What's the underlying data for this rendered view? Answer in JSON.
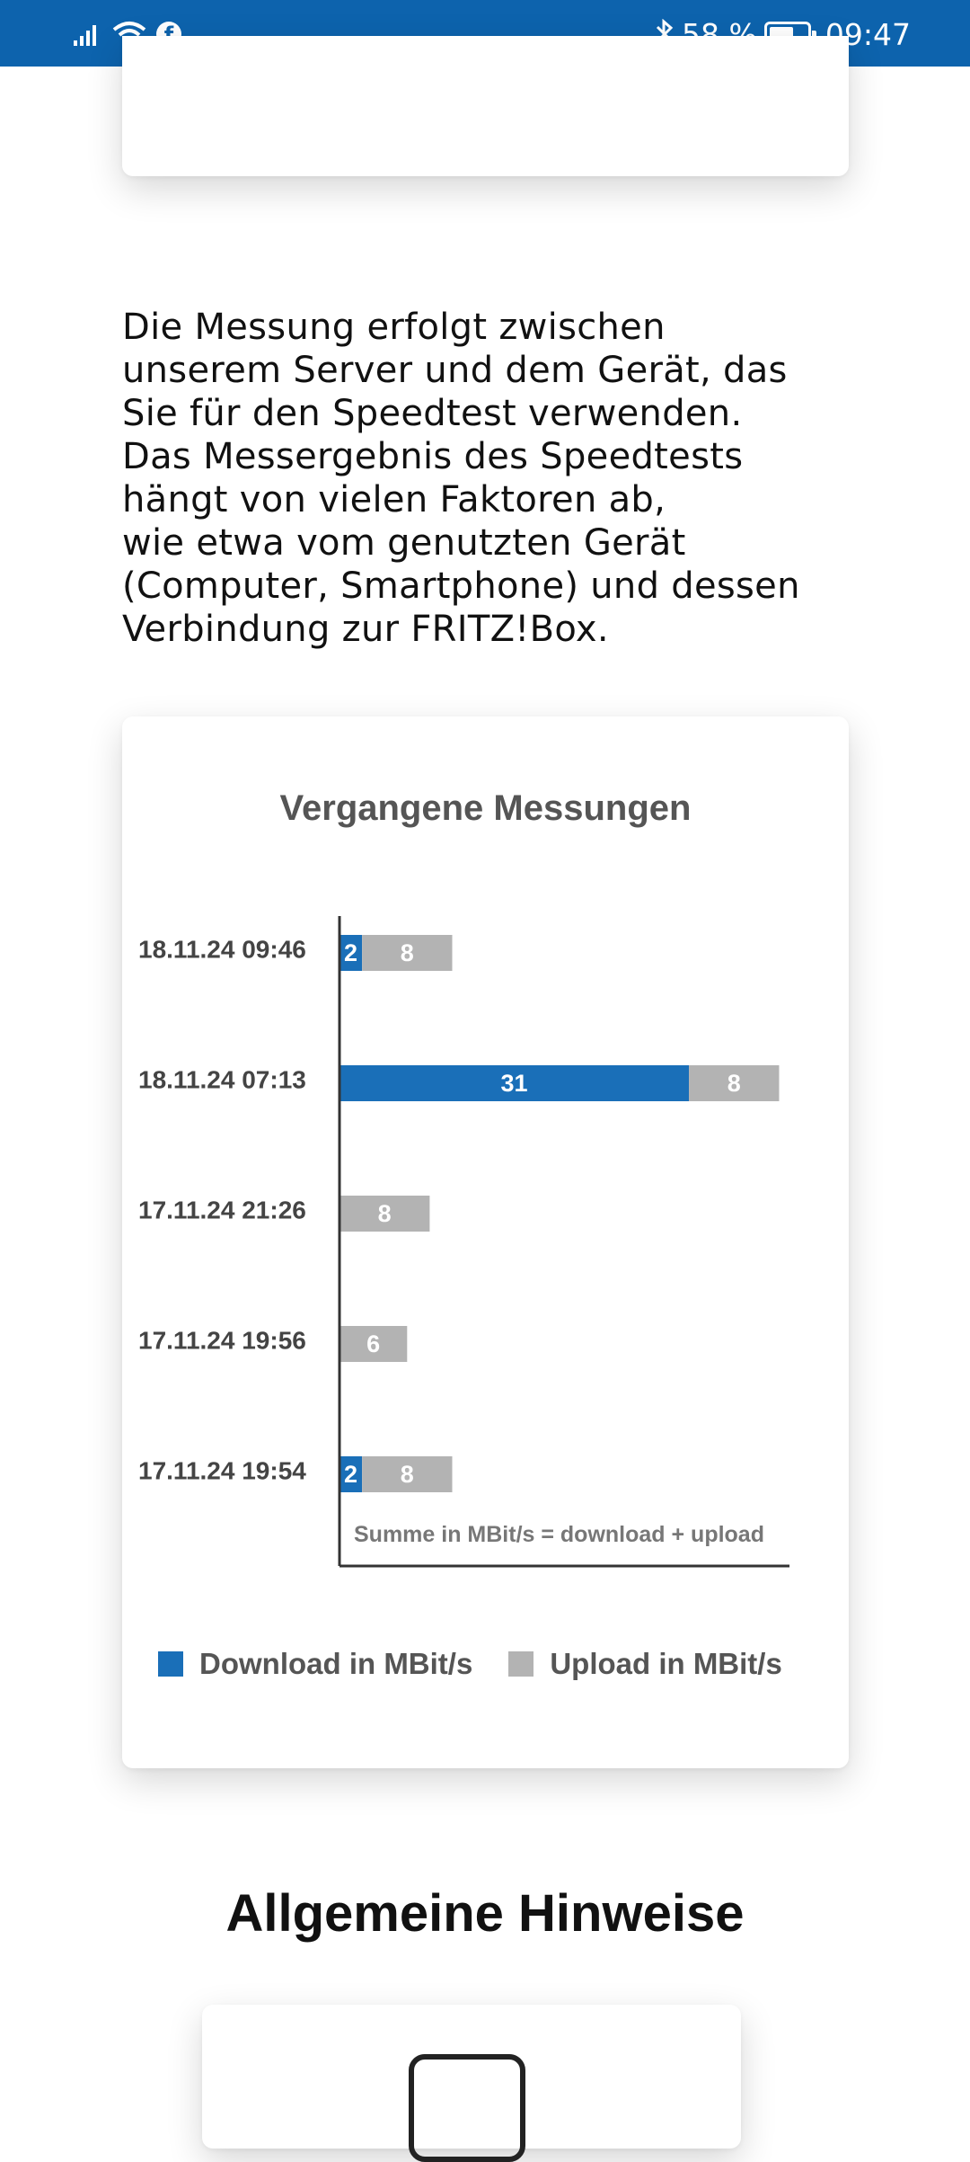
{
  "status_bar": {
    "battery": "58 %",
    "time": "09:47",
    "icons": [
      "signal-icon",
      "wifi-icon",
      "facebook-icon",
      "bluetooth-icon",
      "battery-icon"
    ]
  },
  "intro_text": "Die Messung erfolgt zwischen\nunserem Server und dem Gerät, das\nSie für den Speedtest verwenden.\nDas Messergebnis des Speedtests\nhängt von vielen Faktoren ab,\nwie etwa vom genutzten Gerät\n(Computer, Smartphone) und dessen\nVerbindung zur FRITZ!Box.",
  "chart_data": {
    "type": "bar",
    "orientation": "horizontal",
    "stacked": true,
    "title": "Vergangene Messungen",
    "categories": [
      "18.11.24 09:46",
      "18.11.24 07:13",
      "17.11.24 21:26",
      "17.11.24 19:56",
      "17.11.24 19:54"
    ],
    "series": [
      {
        "name": "Download in MBit/s",
        "color": "#1a6fb8",
        "values": [
          2,
          31,
          0,
          0,
          2
        ]
      },
      {
        "name": "Upload in MBit/s",
        "color": "#b3b3b3",
        "values": [
          8,
          8,
          8,
          6,
          8
        ]
      }
    ],
    "note": "Summe in MBit/s  = download + upload",
    "legend_position": "bottom",
    "grid": false
  },
  "section_heading": "Allgemeine Hinweise"
}
